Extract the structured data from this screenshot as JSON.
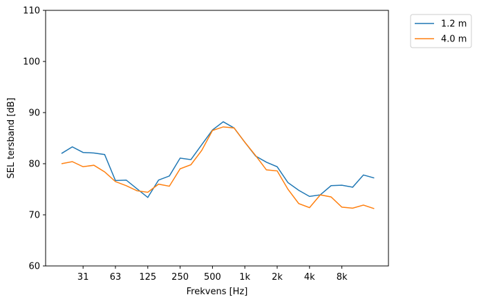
{
  "chart_data": {
    "type": "line",
    "title": "",
    "xlabel": "Frekvens [Hz]",
    "ylabel": "SEL tersband [dB]",
    "ylim": [
      60,
      110
    ],
    "yticks": [
      "60",
      "70",
      "80",
      "90",
      "100",
      "110"
    ],
    "x": [
      "20",
      "25",
      "31.5",
      "40",
      "50",
      "63",
      "80",
      "100",
      "125",
      "160",
      "200",
      "250",
      "315",
      "400",
      "500",
      "630",
      "800",
      "1k",
      "1.25k",
      "1.6k",
      "2k",
      "2.5k",
      "3.15k",
      "4k",
      "5k",
      "6.3k",
      "8k",
      "10k",
      "12.5k",
      "16k"
    ],
    "xtick_labels": [
      "31",
      "63",
      "125",
      "250",
      "500",
      "1k",
      "2k",
      "4k",
      "8k"
    ],
    "legend_position": "outside-top-right",
    "grid": false,
    "series": [
      {
        "name": "1.2 m",
        "color": "#1f77b4",
        "values": [
          82.0,
          83.3,
          82.2,
          82.1,
          81.8,
          76.7,
          76.8,
          75.1,
          73.4,
          76.8,
          77.6,
          81.1,
          80.8,
          83.7,
          86.6,
          88.2,
          87.0,
          84.2,
          81.5,
          80.3,
          79.4,
          76.3,
          74.8,
          73.6,
          73.9,
          75.7,
          75.8,
          75.4,
          77.8,
          77.2
        ]
      },
      {
        "name": "4.0 m",
        "color": "#ff7f0e",
        "values": [
          80.0,
          80.4,
          79.4,
          79.7,
          78.4,
          76.5,
          75.7,
          74.7,
          74.4,
          76.0,
          75.6,
          79.0,
          79.8,
          82.6,
          86.5,
          87.2,
          87.0,
          84.2,
          81.6,
          78.8,
          78.6,
          75.0,
          72.2,
          71.4,
          73.9,
          73.5,
          71.5,
          71.3,
          71.9,
          71.2
        ]
      }
    ]
  }
}
